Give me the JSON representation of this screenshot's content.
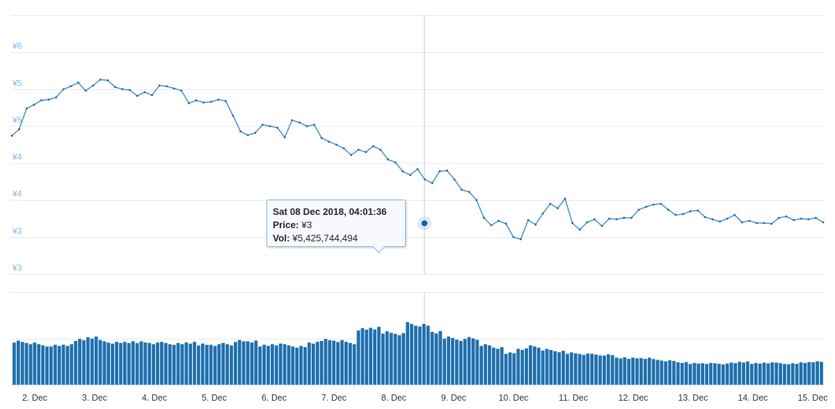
{
  "chart_data": [
    {
      "type": "line",
      "series": [
        {
          "y": [
            4.37,
            4.46,
            4.74,
            4.79,
            4.85,
            4.86,
            4.89,
            5.0,
            5.04,
            5.09,
            4.98,
            5.05,
            5.13,
            5.12,
            5.03,
            5.0,
            4.99,
            4.91,
            4.96,
            4.92,
            5.05,
            5.04,
            5.01,
            4.98,
            4.81,
            4.85,
            4.82,
            4.83,
            4.86,
            4.84,
            4.64,
            4.43,
            4.38,
            4.41,
            4.52,
            4.5,
            4.48,
            4.35,
            4.58,
            4.55,
            4.5,
            4.52,
            4.34,
            4.29,
            4.25,
            4.2,
            4.11,
            4.18,
            4.15,
            4.23,
            4.18,
            4.05,
            4.01,
            3.89,
            3.84,
            3.92,
            3.78,
            3.73,
            3.89,
            3.9,
            3.78,
            3.64,
            3.61,
            3.5,
            3.26,
            3.16,
            3.22,
            3.18,
            3.0,
            2.97,
            3.23,
            3.17,
            3.32,
            3.45,
            3.39,
            3.52,
            3.19,
            3.1,
            3.2,
            3.24,
            3.15,
            3.25,
            3.24,
            3.26,
            3.26,
            3.37,
            3.41,
            3.44,
            3.45,
            3.37,
            3.3,
            3.31,
            3.35,
            3.36,
            3.27,
            3.24,
            3.21,
            3.25,
            3.3,
            3.2,
            3.22,
            3.19,
            3.19,
            3.18,
            3.26,
            3.28,
            3.23,
            3.25,
            3.24,
            3.26,
            3.2
          ],
          "x_start": "2018-12-01T18:00",
          "x_end": "2018-12-15T15:00"
        }
      ],
      "ylim": [
        2.5,
        6.0
      ],
      "yticks": [
        {
          "v": 2.5,
          "label": "¥3"
        },
        {
          "v": 3.0,
          "label": "¥3"
        },
        {
          "v": 3.5,
          "label": "¥4"
        },
        {
          "v": 4.0,
          "label": "¥4"
        },
        {
          "v": 4.5,
          "label": "¥5"
        },
        {
          "v": 5.0,
          "label": "¥5"
        },
        {
          "v": 5.5,
          "label": "¥6"
        }
      ],
      "xticks": [
        "2. Dec",
        "3. Dec",
        "4. Dec",
        "5. Dec",
        "6. Dec",
        "7. Dec",
        "8. Dec",
        "9. Dec",
        "10. Dec",
        "11. Dec",
        "12. Dec",
        "13. Dec",
        "14. Dec",
        "15. Dec"
      ],
      "color": "#7cb5ec",
      "grid": true
    },
    {
      "type": "bar",
      "values": [
        0.75,
        0.72,
        0.68,
        0.67,
        0.68,
        0.78,
        0.82,
        0.75,
        0.72,
        0.73,
        0.74,
        0.72,
        0.72,
        0.7,
        0.72,
        0.7,
        0.69,
        0.7,
        0.75,
        0.74,
        0.68,
        0.7,
        0.68,
        0.65,
        0.72,
        0.78,
        0.76,
        0.72,
        0.95,
        0.97,
        0.91,
        0.88,
        1.05,
        1.02,
        0.9,
        0.82,
        0.78,
        0.8,
        0.68,
        0.63,
        0.55,
        0.62,
        0.66,
        0.6,
        0.57,
        0.55,
        0.53,
        0.52,
        0.51,
        0.46,
        0.46,
        0.46,
        0.43,
        0.41,
        0.38,
        0.37,
        0.37,
        0.36,
        0.37,
        0.39,
        0.37,
        0.38,
        0.37,
        0.36,
        0.38,
        0.4
      ],
      "volume_ylim": [
        0,
        1.6
      ],
      "color": "#1f6fad"
    }
  ],
  "tooltip": {
    "title": "Sat 08 Dec 2018, 04:01:36",
    "price_label": "Price:",
    "price_value": "¥3",
    "vol_label": "Vol:",
    "vol_value": "¥5,425,744,494"
  }
}
